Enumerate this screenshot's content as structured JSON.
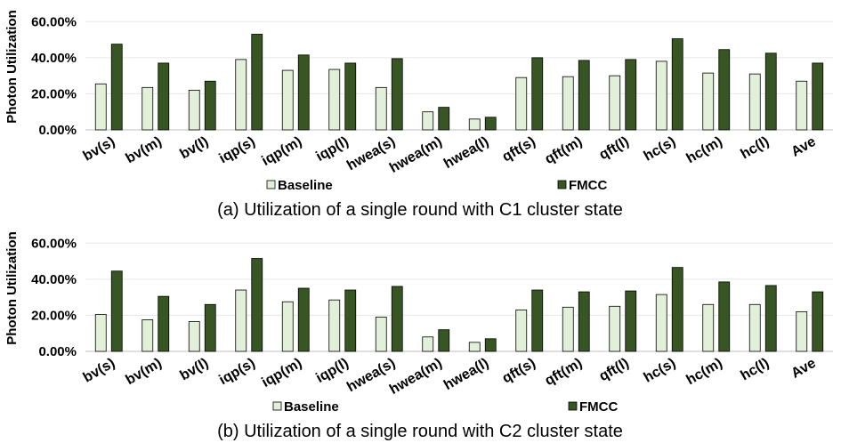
{
  "chart_data": [
    {
      "type": "bar",
      "title": "",
      "caption": "(a) Utilization of a single round with C1 cluster state",
      "xlabel": "",
      "ylabel": "Photon Utilization",
      "ylim": [
        0,
        70
      ],
      "yticks": [
        0,
        20,
        40,
        60
      ],
      "ytick_labels": [
        "0.00%",
        "20.00%",
        "40.00%",
        "60.00%"
      ],
      "grid": true,
      "legend_position": "bottom",
      "categories": [
        "bv(s)",
        "bv(m)",
        "bv(l)",
        "iqp(s)",
        "iqp(m)",
        "iqp(l)",
        "hwea(s)",
        "hwea(m)",
        "hwea(l)",
        "qft(s)",
        "qft(m)",
        "qft(l)",
        "hc(s)",
        "hc(m)",
        "hc(l)",
        "Ave"
      ],
      "series": [
        {
          "name": "Baseline",
          "color": "#e2efd9",
          "values": [
            25.5,
            23.5,
            22,
            39,
            33,
            33.5,
            23.5,
            10,
            6,
            29,
            29.5,
            30,
            38,
            31.5,
            31,
            27
          ]
        },
        {
          "name": "FMCC",
          "color": "#375623",
          "values": [
            47.5,
            37,
            27,
            53,
            41.5,
            37,
            39.5,
            12.5,
            7,
            40,
            38.5,
            39,
            50.5,
            44.5,
            42.5,
            37
          ]
        }
      ]
    },
    {
      "type": "bar",
      "title": "",
      "caption": "(b) Utilization of a single round with C2 cluster state",
      "xlabel": "",
      "ylabel": "Photon Utilization",
      "ylim": [
        0,
        70
      ],
      "yticks": [
        0,
        20,
        40,
        60
      ],
      "ytick_labels": [
        "0.00%",
        "20.00%",
        "40.00%",
        "60.00%"
      ],
      "grid": true,
      "legend_position": "bottom",
      "categories": [
        "bv(s)",
        "bv(m)",
        "bv(l)",
        "iqp(s)",
        "iqp(m)",
        "iqp(l)",
        "hwea(s)",
        "hwea(m)",
        "hwea(l)",
        "qft(s)",
        "qft(m)",
        "qft(l)",
        "hc(s)",
        "hc(m)",
        "hc(l)",
        "Ave"
      ],
      "series": [
        {
          "name": "Baseline",
          "color": "#e2efd9",
          "values": [
            20.5,
            17.5,
            16.5,
            34,
            27.5,
            28.5,
            19,
            8,
            5,
            23,
            24.5,
            25,
            31.5,
            26,
            26,
            22
          ]
        },
        {
          "name": "FMCC",
          "color": "#375623",
          "values": [
            44.5,
            30.5,
            26,
            51.5,
            35,
            34,
            36,
            12,
            7,
            34,
            33,
            33.5,
            46.5,
            38.5,
            36.5,
            33
          ]
        }
      ]
    }
  ]
}
